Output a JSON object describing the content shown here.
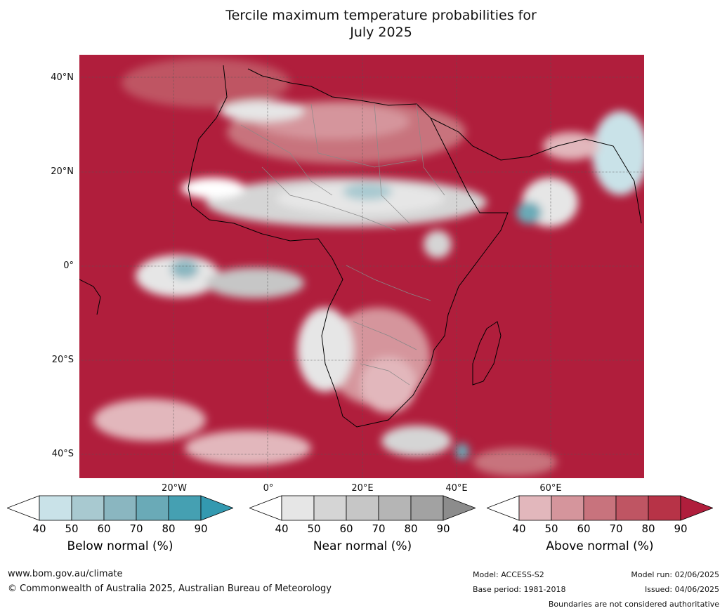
{
  "title": {
    "line1": "Tercile maximum temperature probabilities for",
    "line2": "July 2025"
  },
  "map": {
    "lat_labels": [
      "40°N",
      "20°N",
      "0°",
      "20°S",
      "40°S"
    ],
    "lon_labels": [
      "20°W",
      "0°",
      "20°E",
      "40°E",
      "60°E"
    ]
  },
  "colorbars": [
    {
      "title": "Below normal (%)",
      "ticks": [
        "40",
        "50",
        "60",
        "70",
        "80",
        "90"
      ],
      "colors": [
        "#c9e2e8",
        "#a8c9d0",
        "#8ab6c0",
        "#6aaab7",
        "#45a0b2"
      ],
      "over_color": "#3399b0"
    },
    {
      "title": "Near normal (%)",
      "ticks": [
        "40",
        "50",
        "60",
        "70",
        "80",
        "90"
      ],
      "colors": [
        "#e6e6e6",
        "#d5d5d5",
        "#c6c6c6",
        "#b5b5b5",
        "#a2a2a2"
      ],
      "over_color": "#8c8c8c"
    },
    {
      "title": "Above normal (%)",
      "ticks": [
        "40",
        "50",
        "60",
        "70",
        "80",
        "90"
      ],
      "colors": [
        "#e2b7bc",
        "#d5959c",
        "#c8737d",
        "#bf5563",
        "#b73347"
      ],
      "over_color": "#b01e3c"
    }
  ],
  "footer": {
    "website": "www.bom.gov.au/climate",
    "copyright": "© Commonwealth of Australia 2025, Australian Bureau of Meteorology",
    "model": "Model: ACCESS-S2",
    "base_period": "Base period: 1981-2018",
    "model_run": "Model run: 02/06/2025",
    "issued": "Issued: 04/06/2025",
    "disclaimer": "Boundaries are not considered authoritative"
  }
}
